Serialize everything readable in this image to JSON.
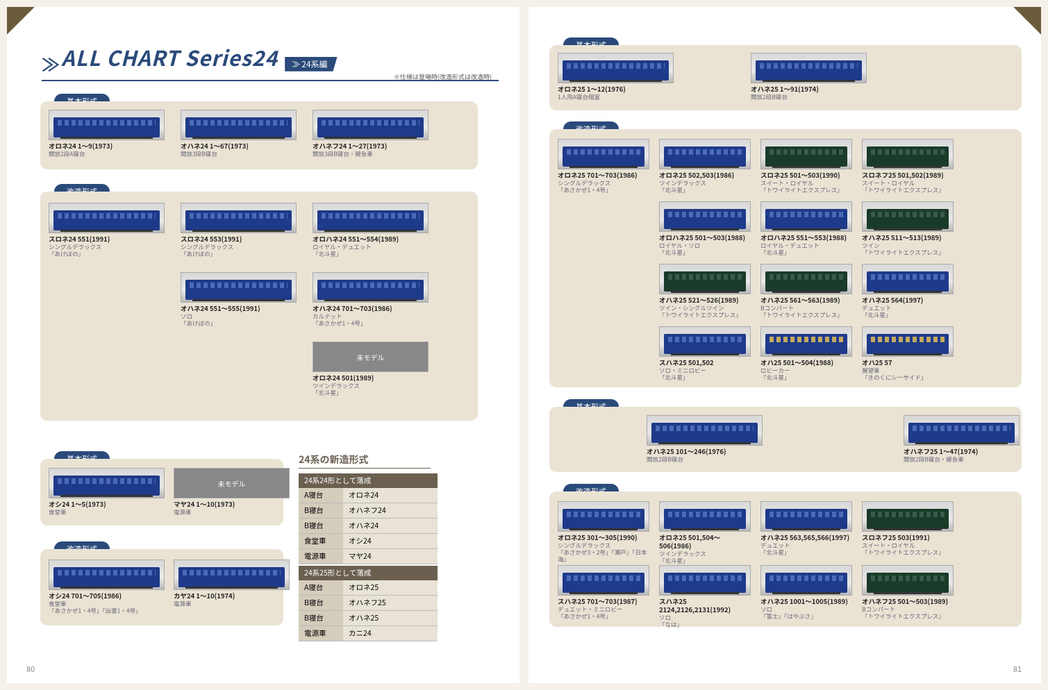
{
  "header": {
    "title": "ALL CHART Series24",
    "tag": "24系編",
    "note": "※仕様は登場時(改造形式は改造時)"
  },
  "badges": {
    "basic": "基本形式",
    "mod": "改造形式"
  },
  "labels": {
    "unmodel": "未モデル"
  },
  "left": {
    "b1": [
      {
        "t": "オロネ24 1～9(1973)",
        "d": "開放2段A寝台"
      },
      {
        "t": "オハネ24 1～67(1973)",
        "d": "開放3段B寝台"
      },
      {
        "t": "オハネフ24 1～27(1973)",
        "d": "開放3段B寝台・緩急車"
      }
    ],
    "m1": [
      {
        "t": "スロネ24 551(1991)",
        "d": "シングルデラックス\n「あけぼの」"
      },
      {
        "t": "スロネ24 553(1991)",
        "d": "シングルデラックス\n「あけぼの」"
      },
      {
        "t": "オロハネ24 551～554(1989)",
        "d": "ロイヤル・デュエット\n「北斗星」"
      },
      {
        "t": "オハネ24 551～555(1991)",
        "d": "ソロ\n「あけぼの」"
      },
      {
        "t": "オハネ24 701～703(1986)",
        "d": "カルテット\n「あさかぜ1・4号」"
      },
      {
        "t": "オロネ24 501(1989)",
        "d": "ツインデラックス\n「北斗星」",
        "unmodel": true
      }
    ],
    "b2": [
      {
        "t": "オシ24 1～5(1973)",
        "d": "食堂車"
      },
      {
        "t": "マヤ24 1～10(1973)",
        "d": "電源車",
        "unmodel": true
      }
    ],
    "m2": [
      {
        "t": "オシ24 701～705(1986)",
        "d": "食堂車\n「あさかぜ1・4号」「出雲1・4号」"
      },
      {
        "t": "カヤ24 1～10(1974)",
        "d": "電源車"
      }
    ],
    "sect": "24系の新造形式",
    "t1": {
      "h": "24系24形として落成",
      "r": [
        [
          "A寝台",
          "オロネ24"
        ],
        [
          "B寝台",
          "オハネフ24"
        ],
        [
          "B寝台",
          "オハネ24"
        ],
        [
          "食堂車",
          "オシ24"
        ],
        [
          "電源車",
          "マヤ24"
        ]
      ]
    },
    "t2": {
      "h": "24系25形として落成",
      "r": [
        [
          "A寝台",
          "オロネ25"
        ],
        [
          "B寝台",
          "オハネフ25"
        ],
        [
          "B寝台",
          "オハネ25"
        ],
        [
          "電源車",
          "カニ24"
        ]
      ]
    }
  },
  "right": {
    "b1": [
      {
        "t": "オロネ25 1～12(1976)",
        "d": "1人用A寝台個室"
      },
      {
        "t": "オハネ25 1～91(1974)",
        "d": "開放2段B寝台"
      }
    ],
    "m1": [
      [
        {
          "t": "オロネ25 701～703(1986)",
          "d": "シングルデラックス\n「あさかぜ1・4号」"
        },
        {
          "t": "オロネ25 502,503(1986)",
          "d": "ツインデラックス\n「北斗星」"
        },
        {
          "t": "スロネ25 501～503(1990)",
          "d": "スイート・ロイヤル\n「トワイライトエクスプレス」",
          "g": true
        },
        {
          "t": "スロネフ25 501,502(1989)",
          "d": "スイート・ロイヤル\n「トワイライトエクスプレス」",
          "g": true
        }
      ],
      [
        null,
        {
          "t": "オロハネ25 501～503(1988)",
          "d": "ロイヤル・ソロ\n「北斗星」"
        },
        {
          "t": "オロハネ25 551～553(1988)",
          "d": "ロイヤル・デュエット\n「北斗星」"
        },
        {
          "t": "オハネ25 511～513(1989)",
          "d": "ツイン\n「トワイライトエクスプレス」",
          "g": true
        }
      ],
      [
        null,
        {
          "t": "オハネ25 521～526(1989)",
          "d": "ツイン・シングルツイン\n「トワイライトエクスプレス」",
          "g": true
        },
        {
          "t": "オハネ25 561～563(1989)",
          "d": "Bコンパート\n「トワイライトエクスプレス」",
          "g": true
        },
        {
          "t": "オハネ25 564(1997)",
          "d": "デュエット\n「北斗星」"
        }
      ],
      [
        null,
        {
          "t": "スハネ25 501,502",
          "d": "ソロ・ミニロビー\n「北斗星」"
        },
        {
          "t": "オハ25 501～504(1988)",
          "d": "ロビーカー\n「北斗星」",
          "s": true
        },
        {
          "t": "オハ25 57",
          "d": "展望車\n「きのくにシーサイド」",
          "s": true
        }
      ]
    ],
    "b2": [
      {
        "t": "オハネ25 101～246(1976)",
        "d": "開放2段B寝台"
      },
      {
        "t": "オハネフ25 1～47(1974)",
        "d": "開放2段B寝台・緩急車"
      }
    ],
    "m2": [
      [
        {
          "t": "オロネ25 301～305(1990)",
          "d": "シングルデラックス\n「あさかぜ3・2号」「瀬戸」「日本海」"
        },
        {
          "t": "オロネ25 501,504～506(1986)",
          "d": "ツインデラックス\n「北斗星」"
        },
        {
          "t": "オハネ25 563,565,566(1997)",
          "d": "デュエット\n「北斗星」"
        },
        {
          "t": "スロネフ25 503(1991)",
          "d": "スイート・ロイヤル\n「トワイライトエクスプレス」",
          "g": true
        }
      ],
      [
        {
          "t": "スハネ25 701～703(1987)",
          "d": "デュエット・ミニロビー\n「あさかぜ1・4号」"
        },
        {
          "t": "スハネ25 2124,2126,2131(1992)",
          "d": "ソロ\n「なは」"
        },
        {
          "t": "オハネ25 1001～1005(1989)",
          "d": "ソロ\n「富士」「はやぶさ」"
        },
        {
          "t": "オハネフ25 501～503(1989)",
          "d": "Bコンパート\n「トワイライトエクスプレス」",
          "g": true
        }
      ]
    ]
  },
  "pages": {
    "l": "80",
    "r": "81"
  }
}
